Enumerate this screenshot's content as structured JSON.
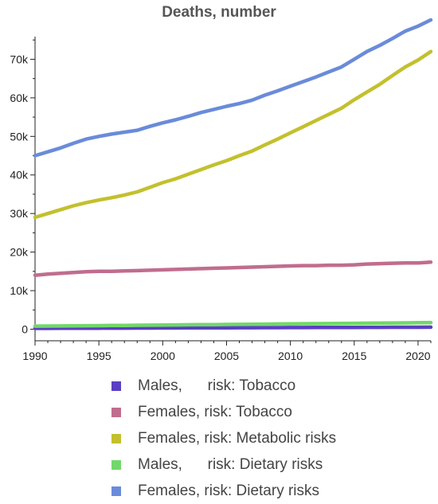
{
  "chart_data": {
    "type": "line",
    "title": "Deaths, number",
    "xlabel": "",
    "ylabel": "",
    "xlim": [
      1990,
      2021
    ],
    "ylim": [
      -3000,
      80000
    ],
    "xticks": [
      {
        "value": 1990,
        "label": "1990"
      },
      {
        "value": 1995,
        "label": "1995"
      },
      {
        "value": 2000,
        "label": "2000"
      },
      {
        "value": 2005,
        "label": "2005"
      },
      {
        "value": 2010,
        "label": "2010"
      },
      {
        "value": 2015,
        "label": "2015"
      },
      {
        "value": 2020,
        "label": "2020"
      }
    ],
    "yticks": [
      {
        "value": 0,
        "label": "0"
      },
      {
        "value": 10000,
        "label": "10k"
      },
      {
        "value": 20000,
        "label": "20k"
      },
      {
        "value": 30000,
        "label": "30k"
      },
      {
        "value": 40000,
        "label": "40k"
      },
      {
        "value": 50000,
        "label": "50k"
      },
      {
        "value": 60000,
        "label": "60k"
      },
      {
        "value": 70000,
        "label": "70k"
      }
    ],
    "grid": false,
    "legend_position": "bottom",
    "x": [
      1990,
      1991,
      1992,
      1993,
      1994,
      1995,
      1996,
      1997,
      1998,
      1999,
      2000,
      2001,
      2002,
      2003,
      2004,
      2005,
      2006,
      2007,
      2008,
      2009,
      2010,
      2011,
      2012,
      2013,
      2014,
      2015,
      2016,
      2017,
      2018,
      2019,
      2020,
      2021
    ],
    "series": [
      {
        "name": "Males,      risk: Tobacco",
        "color": "#5b3fc4",
        "values": [
          220,
          230,
          240,
          250,
          260,
          270,
          280,
          290,
          300,
          310,
          320,
          330,
          340,
          350,
          360,
          370,
          380,
          390,
          400,
          410,
          420,
          430,
          440,
          450,
          460,
          470,
          480,
          490,
          500,
          510,
          520,
          530
        ]
      },
      {
        "name": "Females, risk: Tobacco",
        "color": "#c06d8e",
        "values": [
          14000,
          14300,
          14500,
          14700,
          14900,
          15000,
          15000,
          15100,
          15200,
          15300,
          15400,
          15500,
          15600,
          15700,
          15800,
          15900,
          16000,
          16100,
          16200,
          16300,
          16400,
          16500,
          16500,
          16600,
          16600,
          16700,
          16900,
          17000,
          17100,
          17200,
          17200,
          17400
        ]
      },
      {
        "name": "Females, risk: Metabolic risks",
        "color": "#c3c02e",
        "values": [
          29000,
          30000,
          31000,
          32000,
          32800,
          33500,
          34100,
          34800,
          35600,
          36800,
          38000,
          39000,
          40200,
          41400,
          42600,
          43700,
          45000,
          46200,
          47800,
          49300,
          50900,
          52500,
          54100,
          55700,
          57300,
          59500,
          61500,
          63500,
          65800,
          68000,
          69800,
          72000
        ]
      },
      {
        "name": "Males,      risk: Dietary risks",
        "color": "#72d86a",
        "values": [
          800,
          820,
          850,
          880,
          900,
          930,
          960,
          990,
          1020,
          1050,
          1080,
          1110,
          1140,
          1170,
          1200,
          1230,
          1260,
          1290,
          1320,
          1350,
          1380,
          1410,
          1440,
          1470,
          1500,
          1530,
          1560,
          1590,
          1620,
          1650,
          1680,
          1720
        ]
      },
      {
        "name": "Females, risk: Dietary risks",
        "color": "#6a8bda",
        "values": [
          45000,
          46000,
          47000,
          48200,
          49300,
          50000,
          50600,
          51100,
          51600,
          52600,
          53500,
          54300,
          55200,
          56200,
          57000,
          57800,
          58500,
          59400,
          60700,
          61800,
          63000,
          64200,
          65400,
          66700,
          68000,
          70000,
          72000,
          73600,
          75400,
          77300,
          78600,
          80200
        ]
      }
    ]
  }
}
